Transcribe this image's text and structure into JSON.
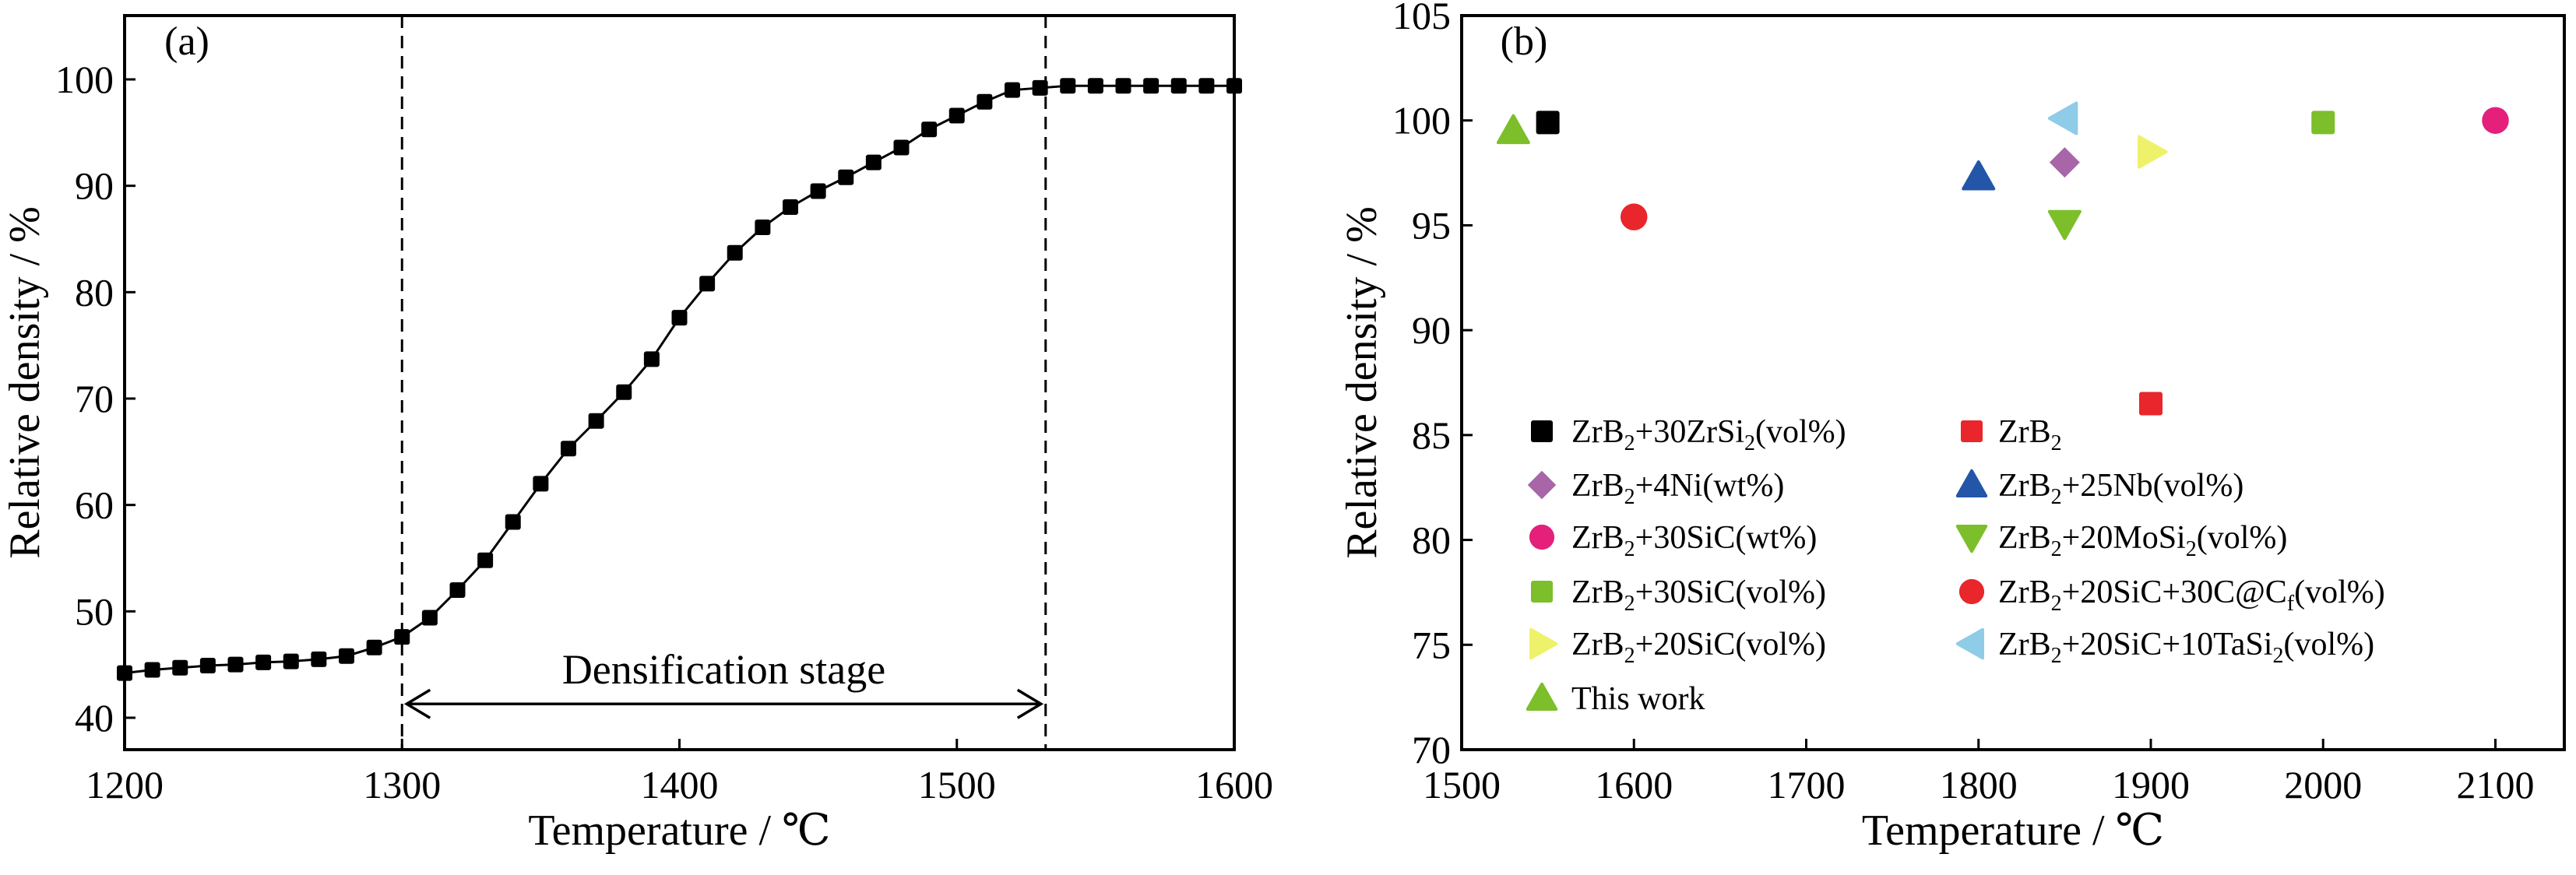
{
  "chart_data": [
    {
      "type": "line",
      "panel_label": "(a)",
      "xlabel": "Temperature /  ℃",
      "ylabel": "Relative density / %",
      "xlim": [
        1200,
        1600
      ],
      "ylim": [
        37,
        106
      ],
      "xticks": [
        1200,
        1300,
        1400,
        1500,
        1600
      ],
      "yticks": [
        40,
        50,
        60,
        70,
        80,
        90,
        100
      ],
      "grid": false,
      "marker": "square",
      "series": [
        {
          "x": [
            1200,
            1210,
            1220,
            1230,
            1240,
            1250,
            1260,
            1270,
            1280,
            1290,
            1300,
            1310,
            1320,
            1330,
            1340,
            1350,
            1360,
            1370,
            1380,
            1390,
            1400,
            1410,
            1420,
            1430,
            1440,
            1450,
            1460,
            1470,
            1480,
            1490,
            1500,
            1510,
            1520,
            1530,
            1540,
            1550,
            1560,
            1570,
            1580,
            1590,
            1600
          ],
          "y": [
            44.2,
            44.5,
            44.7,
            44.9,
            45.0,
            45.2,
            45.3,
            45.5,
            45.8,
            46.6,
            47.6,
            49.4,
            52.0,
            54.8,
            58.4,
            62.0,
            65.3,
            67.9,
            70.6,
            73.7,
            77.6,
            80.8,
            83.7,
            86.1,
            88.0,
            89.5,
            90.8,
            92.2,
            93.6,
            95.3,
            96.6,
            97.9,
            99.0,
            99.2,
            99.4,
            99.4,
            99.4,
            99.4,
            99.4,
            99.4,
            99.4
          ]
        }
      ],
      "reference_lines_x": [
        1300,
        1532
      ],
      "annotation": {
        "text": "Densification stage",
        "from_x": 1300,
        "to_x": 1532,
        "y": 41.3
      }
    },
    {
      "type": "scatter",
      "panel_label": "(b)",
      "xlabel": "Temperature / ℃",
      "ylabel": "Relative density / %",
      "xlim": [
        1500,
        2140
      ],
      "ylim": [
        70,
        105
      ],
      "xticks": [
        1500,
        1600,
        1700,
        1800,
        1900,
        2000,
        2100
      ],
      "yticks": [
        70,
        75,
        80,
        85,
        90,
        95,
        100,
        105
      ],
      "grid": false,
      "legend_placement": "lower-left",
      "series": [
        {
          "name": "ZrB2+30ZrSi2(vol%)",
          "label_parts": [
            [
              "ZrB",
              ""
            ],
            [
              "2",
              "sub"
            ],
            [
              "+30ZrSi",
              ""
            ],
            [
              "2",
              "sub"
            ],
            [
              "(vol%)",
              ""
            ]
          ],
          "marker": "square",
          "color": "#000000",
          "x": [
            1550
          ],
          "y": [
            99.9
          ]
        },
        {
          "name": "ZrB2+4Ni(wt%)",
          "label_parts": [
            [
              "ZrB",
              ""
            ],
            [
              "2",
              "sub"
            ],
            [
              "+4Ni(wt%)",
              ""
            ]
          ],
          "marker": "diamond",
          "color": "#a865a8",
          "x": [
            1850
          ],
          "y": [
            98.0
          ]
        },
        {
          "name": "ZrB2+30SiC(wt%)",
          "label_parts": [
            [
              "ZrB",
              ""
            ],
            [
              "2",
              "sub"
            ],
            [
              "+30SiC(wt%)",
              ""
            ]
          ],
          "marker": "circle",
          "color": "#e4207b",
          "x": [
            2100
          ],
          "y": [
            100.0
          ]
        },
        {
          "name": "ZrB2+30SiC(vol%)",
          "label_parts": [
            [
              "ZrB",
              ""
            ],
            [
              "2",
              "sub"
            ],
            [
              "+30SiC(vol%)",
              ""
            ]
          ],
          "marker": "square",
          "color": "#7cbf2a",
          "x": [
            2000
          ],
          "y": [
            99.9
          ]
        },
        {
          "name": "ZrB2+20SiC(vol%)",
          "label_parts": [
            [
              "ZrB",
              ""
            ],
            [
              "2",
              "sub"
            ],
            [
              "+20SiC(vol%)",
              ""
            ]
          ],
          "marker": "triangle-right",
          "color": "#eef26a",
          "x": [
            1900
          ],
          "y": [
            98.5
          ]
        },
        {
          "name": "This work",
          "label_parts": [
            [
              "This work",
              ""
            ]
          ],
          "marker": "triangle-up",
          "color": "#7cbf2a",
          "x": [
            1530
          ],
          "y": [
            99.5
          ]
        },
        {
          "name": "ZrB2",
          "label_parts": [
            [
              "ZrB",
              ""
            ],
            [
              "2",
              "sub"
            ]
          ],
          "marker": "square",
          "color": "#e8262c",
          "x": [
            1900
          ],
          "y": [
            86.5
          ]
        },
        {
          "name": "ZrB2+25Nb(vol%)",
          "label_parts": [
            [
              "ZrB",
              ""
            ],
            [
              "2",
              "sub"
            ],
            [
              "+25Nb(vol%)",
              ""
            ]
          ],
          "marker": "triangle-up",
          "color": "#2356a8",
          "x": [
            1800
          ],
          "y": [
            97.3
          ]
        },
        {
          "name": "ZrB2+20MoSi2(vol%)",
          "label_parts": [
            [
              "ZrB",
              ""
            ],
            [
              "2",
              "sub"
            ],
            [
              "+20MoSi",
              ""
            ],
            [
              "2",
              "sub"
            ],
            [
              "(vol%)",
              ""
            ]
          ],
          "marker": "triangle-down",
          "color": "#7cbf2a",
          "x": [
            1850
          ],
          "y": [
            95.1
          ]
        },
        {
          "name": "ZrB2+20SiC+30C@Cf(vol%)",
          "label_parts": [
            [
              "ZrB",
              ""
            ],
            [
              "2",
              "sub"
            ],
            [
              "+20SiC+30C@C",
              ""
            ],
            [
              "f",
              "sub"
            ],
            [
              "(vol%)",
              ""
            ]
          ],
          "marker": "circle",
          "color": "#e8262c",
          "x": [
            1600
          ],
          "y": [
            95.4
          ]
        },
        {
          "name": "ZrB2+20SiC+10TaSi2(vol%)",
          "label_parts": [
            [
              "ZrB",
              ""
            ],
            [
              "2",
              "sub"
            ],
            [
              "+20SiC+10TaSi",
              ""
            ],
            [
              "2",
              "sub"
            ],
            [
              "(vol%)",
              ""
            ]
          ],
          "marker": "triangle-left",
          "color": "#8fcce8",
          "x": [
            1850
          ],
          "y": [
            100.1
          ]
        }
      ]
    }
  ]
}
